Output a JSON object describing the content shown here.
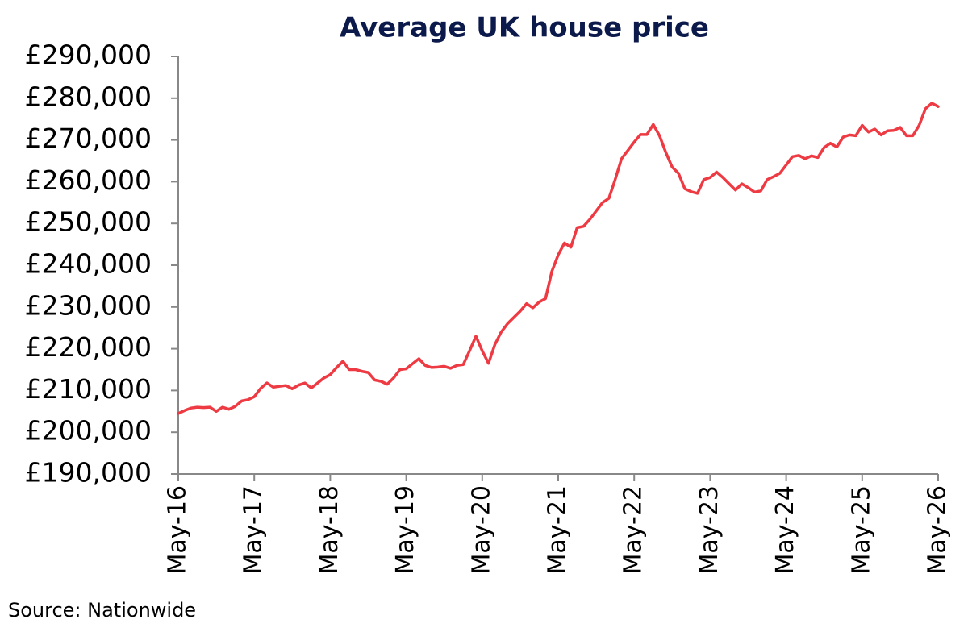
{
  "chart_data": {
    "type": "line",
    "title": "Average UK house price",
    "source": "Source: Nationwide",
    "categories": [
      "May-16",
      null,
      null,
      null,
      null,
      null,
      null,
      null,
      null,
      null,
      null,
      null,
      "May-17",
      null,
      null,
      null,
      null,
      null,
      null,
      null,
      null,
      null,
      null,
      null,
      "May-18",
      null,
      null,
      null,
      null,
      null,
      null,
      null,
      null,
      null,
      null,
      null,
      "May-19",
      null,
      null,
      null,
      null,
      null,
      null,
      null,
      null,
      null,
      null,
      null,
      "May-20",
      null,
      null,
      null,
      null,
      null,
      null,
      null,
      null,
      null,
      null,
      null,
      "May-21",
      null,
      null,
      null,
      null,
      null,
      null,
      null,
      null,
      null,
      null,
      null,
      "May-22",
      null,
      null,
      null,
      null,
      null,
      null,
      null,
      null,
      null,
      null,
      null,
      "May-23",
      null,
      null,
      null,
      null,
      null,
      null,
      null,
      null,
      null,
      null,
      null,
      "May-24",
      null,
      null,
      null,
      null,
      null,
      null,
      null,
      null,
      null,
      null,
      null,
      "May-25",
      null,
      null,
      null,
      null,
      null,
      null,
      null,
      null,
      null,
      null,
      null,
      "May-26"
    ],
    "values": [
      204500,
      205200,
      205800,
      206000,
      205900,
      206000,
      205000,
      206000,
      205500,
      206200,
      207500,
      207800,
      208500,
      210500,
      211800,
      210800,
      211000,
      211200,
      210400,
      211300,
      211800,
      210600,
      211800,
      213000,
      213800,
      215500,
      217000,
      215000,
      215000,
      214600,
      214300,
      212500,
      212200,
      211500,
      213000,
      215000,
      215200,
      216400,
      217600,
      216000,
      215500,
      215600,
      215800,
      215300,
      216000,
      216200,
      219500,
      223000,
      219500,
      216500,
      221000,
      224000,
      226000,
      227500,
      229000,
      230800,
      229800,
      231200,
      232000,
      238500,
      242500,
      245300,
      244300,
      249000,
      249300,
      251000,
      253000,
      255000,
      256000,
      260500,
      265500,
      267500,
      269500,
      271300,
      271300,
      273700,
      271000,
      267000,
      263500,
      262000,
      258300,
      257600,
      257200,
      260500,
      261000,
      262300,
      261000,
      259500,
      258000,
      259500,
      258600,
      257500,
      257800,
      260500,
      261200,
      262000,
      264000,
      266000,
      266300,
      265500,
      266200,
      265800,
      268200,
      269200,
      268300,
      270700,
      271200,
      271000,
      273500,
      271900,
      272600,
      271200,
      272200,
      272300,
      273000,
      271000,
      271000,
      273500,
      277500,
      278800,
      278000
    ],
    "color": "#ee3a43",
    "ylim": [
      190000,
      290000
    ],
    "yticks": [
      {
        "value": 190000,
        "label": "£190,000"
      },
      {
        "value": 200000,
        "label": "£200,000"
      },
      {
        "value": 210000,
        "label": "£210,000"
      },
      {
        "value": 220000,
        "label": "£220,000"
      },
      {
        "value": 230000,
        "label": "£230,000"
      },
      {
        "value": 240000,
        "label": "£240,000"
      },
      {
        "value": 250000,
        "label": "£250,000"
      },
      {
        "value": 260000,
        "label": "£260,000"
      },
      {
        "value": 270000,
        "label": "£270,000"
      },
      {
        "value": 280000,
        "label": "£280,000"
      },
      {
        "value": 290000,
        "label": "£290,000"
      }
    ],
    "grid": false
  }
}
